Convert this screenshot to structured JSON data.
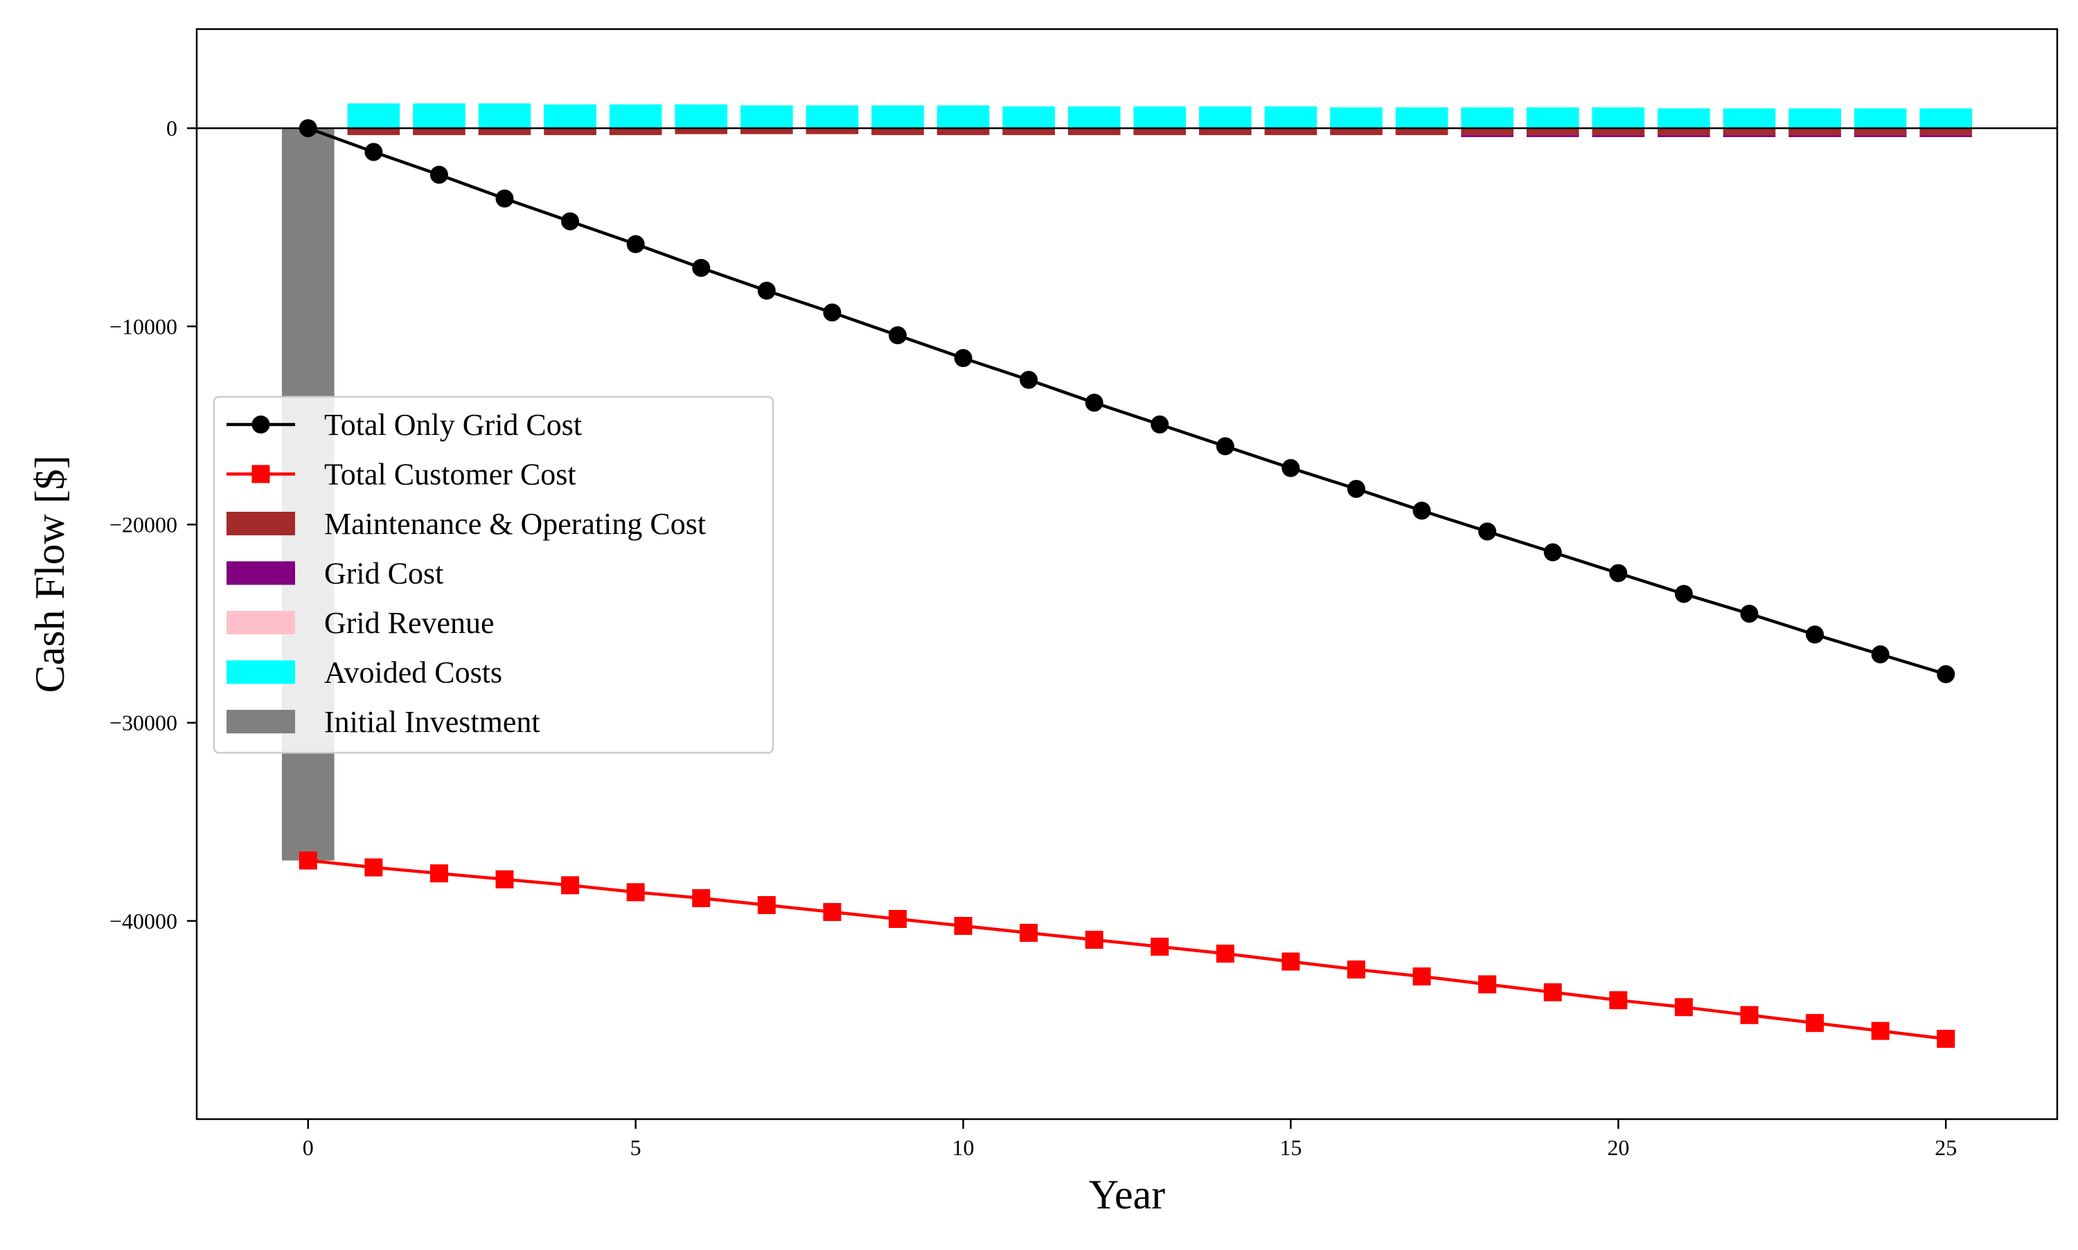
{
  "chart_data": {
    "type": "bar",
    "title": "",
    "xlabel": "Year",
    "ylabel": "Cash Flow [$]",
    "xlim": [
      -1.7,
      26.7
    ],
    "ylim": [
      -50000,
      5000
    ],
    "xticks": [
      0,
      5,
      10,
      15,
      20,
      25
    ],
    "xtick_labels": [
      "0",
      "5",
      "10",
      "15",
      "20",
      "25"
    ],
    "yticks": [
      0,
      -10000,
      -20000,
      -30000,
      -40000
    ],
    "ytick_labels": [
      "0",
      "−10000",
      "−20000",
      "−30000",
      "−40000"
    ],
    "grid": false,
    "legend_position": "center-left",
    "zero_line": true,
    "x": [
      0,
      1,
      2,
      3,
      4,
      5,
      6,
      7,
      8,
      9,
      10,
      11,
      12,
      13,
      14,
      15,
      16,
      17,
      18,
      19,
      20,
      21,
      22,
      23,
      24,
      25
    ],
    "series": [
      {
        "name": "Total Only Grid Cost",
        "kind": "line",
        "marker": "circle",
        "color": "#000000",
        "values": [
          0,
          -1200,
          -2350,
          -3550,
          -4700,
          -5850,
          -7050,
          -8200,
          -9300,
          -10450,
          -11600,
          -12700,
          -13850,
          -14950,
          -16050,
          -17150,
          -18200,
          -19300,
          -20350,
          -21400,
          -22450,
          -23500,
          -24500,
          -25550,
          -26550,
          -27550
        ]
      },
      {
        "name": "Total Customer Cost",
        "kind": "line",
        "marker": "square",
        "color": "#ff0000",
        "values": [
          -36950,
          -37300,
          -37600,
          -37900,
          -38200,
          -38550,
          -38850,
          -39200,
          -39550,
          -39900,
          -40250,
          -40600,
          -40950,
          -41300,
          -41650,
          -42050,
          -42450,
          -42800,
          -43200,
          -43600,
          -44000,
          -44350,
          -44750,
          -45150,
          -45550,
          -45950
        ]
      },
      {
        "name": "Maintenance & Operating Cost",
        "kind": "bar",
        "color": "#a52a2a",
        "values": [
          0,
          -350,
          -350,
          -350,
          -350,
          -350,
          -300,
          -300,
          -300,
          -350,
          -350,
          -350,
          -350,
          -350,
          -350,
          -350,
          -350,
          -350,
          -350,
          -350,
          -350,
          -350,
          -350,
          -350,
          -350,
          -350
        ]
      },
      {
        "name": "Grid Cost",
        "kind": "bar",
        "color": "#800080",
        "values": [
          0,
          0,
          0,
          0,
          0,
          0,
          0,
          0,
          0,
          0,
          0,
          0,
          0,
          0,
          0,
          0,
          0,
          0,
          -100,
          -100,
          -100,
          -100,
          -100,
          -100,
          -100,
          -100
        ]
      },
      {
        "name": "Grid Revenue",
        "kind": "bar",
        "color": "#ffc0cb",
        "values": [
          0,
          0,
          0,
          0,
          0,
          0,
          0,
          0,
          0,
          0,
          0,
          0,
          0,
          0,
          0,
          0,
          0,
          0,
          0,
          0,
          0,
          0,
          0,
          0,
          0,
          0
        ]
      },
      {
        "name": "Avoided Costs",
        "kind": "bar",
        "color": "#00ffff",
        "values": [
          0,
          1250,
          1250,
          1250,
          1200,
          1200,
          1200,
          1150,
          1150,
          1150,
          1150,
          1100,
          1100,
          1100,
          1100,
          1100,
          1050,
          1050,
          1050,
          1050,
          1050,
          1000,
          1000,
          1000,
          1000,
          1000
        ]
      },
      {
        "name": "Initial Investment",
        "kind": "bar",
        "color": "#808080",
        "values": [
          -36950,
          0,
          0,
          0,
          0,
          0,
          0,
          0,
          0,
          0,
          0,
          0,
          0,
          0,
          0,
          0,
          0,
          0,
          0,
          0,
          0,
          0,
          0,
          0,
          0,
          0
        ]
      }
    ]
  }
}
